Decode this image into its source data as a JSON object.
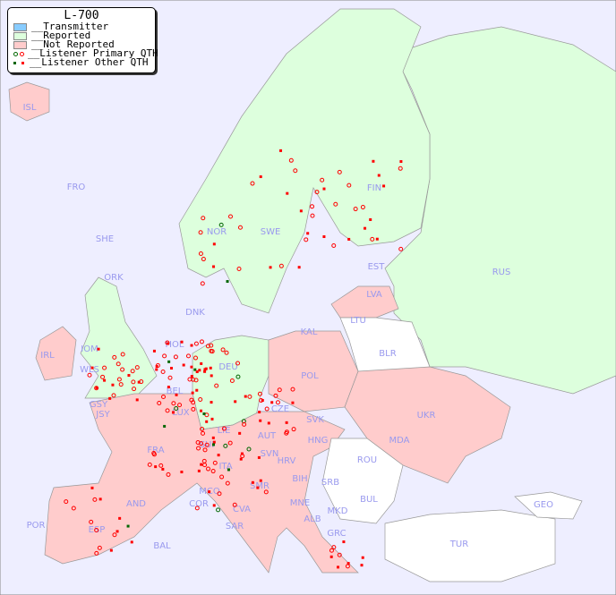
{
  "legend": {
    "title": "L-700",
    "items": [
      {
        "label": "__Transmitter",
        "color": "#88ccff"
      },
      {
        "label": "__Reported",
        "color": "#ddffdd"
      },
      {
        "label": "__Not Reported",
        "color": "#ffcccc"
      },
      {
        "label": "__Listener Primary QTH",
        "colors": [
          "#006600",
          "#ff0000"
        ]
      },
      {
        "label": "__Listener Other QTH",
        "colors": [
          "#006600",
          "#ff0000"
        ]
      }
    ]
  },
  "colors": {
    "sea": "#eeeeff",
    "reported": "#ddffdd",
    "not_reported": "#ffcccc",
    "no_data": "#ffffff",
    "listener": "#ff0000",
    "listener_alt": "#006600"
  },
  "labels": [
    "ISL",
    "FRO",
    "SHE",
    "ORK",
    "NOR",
    "SWE",
    "FIN",
    "EST",
    "LVA",
    "LTU",
    "KAL",
    "BLR",
    "RUS",
    "DNK",
    "HOL",
    "DEU",
    "POL",
    "IRL",
    "IOM",
    "WLS",
    "GSY",
    "JSY",
    "BEL",
    "LUX",
    "CZE",
    "SVK",
    "UKR",
    "MDA",
    "FRA",
    "SUI",
    "LIE",
    "AUT",
    "HNG",
    "ROU",
    "SVN",
    "HRV",
    "BIH",
    "SRB",
    "BUL",
    "MCO",
    "COR",
    "ITA",
    "SMR",
    "CVA",
    "MNE",
    "ALB",
    "MKD",
    "GRC",
    "TUR",
    "GEO",
    "AND",
    "POR",
    "ESP",
    "BAL",
    "SAR"
  ]
}
